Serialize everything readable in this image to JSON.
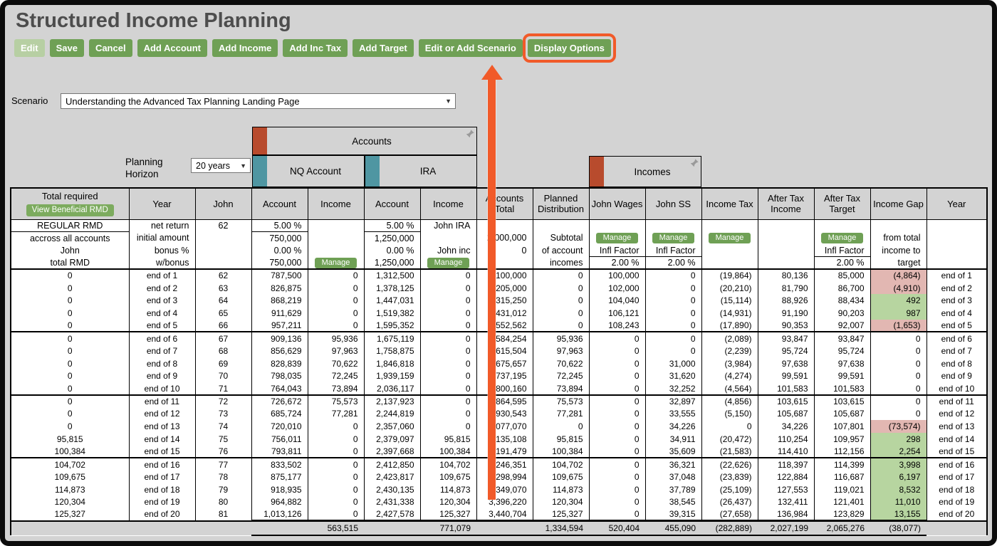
{
  "title": "Structured Income Planning",
  "toolbar": {
    "buttons": [
      {
        "id": "edit",
        "label": "Edit",
        "disabled": true
      },
      {
        "id": "save",
        "label": "Save"
      },
      {
        "id": "cancel",
        "label": "Cancel"
      },
      {
        "id": "add-account",
        "label": "Add Account"
      },
      {
        "id": "add-income",
        "label": "Add Income"
      },
      {
        "id": "add-inc-tax",
        "label": "Add Inc Tax"
      },
      {
        "id": "add-target",
        "label": "Add Target"
      },
      {
        "id": "edit-or-add-scenario",
        "label": "Edit or Add Scenario"
      },
      {
        "id": "display-options",
        "label": "Display Options",
        "highlighted": true
      }
    ]
  },
  "scenario": {
    "label": "Scenario",
    "value": "Understanding the Advanced Tax Planning Landing Page"
  },
  "panels": {
    "accounts_label": "Accounts",
    "nq_label": "NQ Account",
    "ira_label": "IRA",
    "incomes_label": "Incomes",
    "planning_horizon_label": "Planning Horizon",
    "planning_horizon_value": "20 years"
  },
  "colors": {
    "accent_green": "#6fa055",
    "highlight_orange": "#f15a29",
    "cell_orange": "#f2a25d",
    "cell_yellow": "#e9e97a",
    "gap_pink": "#e2b7b2",
    "gap_green": "#b7d5a0",
    "tab_red": "#b84b2d",
    "tab_teal": "#4f96a2"
  },
  "table": {
    "header": {
      "columns": [
        "Total required",
        "Year",
        "John",
        "Account",
        "Income",
        "Account",
        "Income",
        "Accounts Total",
        "Planned Distribution",
        "John Wages",
        "John SS",
        "Income Tax",
        "After Tax Income",
        "After Tax Target",
        "Income Gap",
        "Year"
      ],
      "view_rmd_button": "View Beneficial RMD"
    },
    "sub_rows": [
      [
        {
          "t": "REGULAR RMD",
          "s": "yellow"
        },
        {
          "t": "net return"
        },
        {
          "t": "62"
        },
        {
          "t": "5.00 %",
          "s": "orange"
        },
        {
          "t": ""
        },
        {
          "t": "5.00 %",
          "s": "orange"
        },
        {
          "t": "John IRA"
        },
        {
          "t": ""
        },
        {
          "t": ""
        },
        {
          "t": ""
        },
        {
          "t": ""
        },
        {
          "t": ""
        },
        {
          "t": ""
        },
        {
          "t": ""
        },
        {
          "t": ""
        },
        {
          "t": ""
        }
      ],
      [
        {
          "t": "accross all accounts"
        },
        {
          "t": "initial amount"
        },
        {
          "t": ""
        },
        {
          "t": "750,000"
        },
        {
          "t": ""
        },
        {
          "t": "1,250,000"
        },
        {
          "t": ""
        },
        {
          "t": "2,000,000"
        },
        {
          "t": "Subtotal"
        },
        {
          "t": "Manage",
          "s": "btn"
        },
        {
          "t": "Manage",
          "s": "btn"
        },
        {
          "t": "Manage",
          "s": "btn"
        },
        {
          "t": ""
        },
        {
          "t": "Manage",
          "s": "btn"
        },
        {
          "t": "from total"
        },
        {
          "t": ""
        }
      ],
      [
        {
          "t": "John"
        },
        {
          "t": "bonus %"
        },
        {
          "t": ""
        },
        {
          "t": "0.00 %"
        },
        {
          "t": ""
        },
        {
          "t": "0.00 %"
        },
        {
          "t": "John inc"
        },
        {
          "t": "0"
        },
        {
          "t": "of account"
        },
        {
          "t": "Infl Factor"
        },
        {
          "t": "Infl Factor"
        },
        {
          "t": ""
        },
        {
          "t": ""
        },
        {
          "t": "Infl Factor"
        },
        {
          "t": "income to"
        },
        {
          "t": ""
        }
      ],
      [
        {
          "t": "total RMD"
        },
        {
          "t": "w/bonus"
        },
        {
          "t": ""
        },
        {
          "t": "750,000"
        },
        {
          "t": "Manage",
          "s": "btn"
        },
        {
          "t": "1,250,000"
        },
        {
          "t": "Manage",
          "s": "btn"
        },
        {
          "t": ""
        },
        {
          "t": "incomes"
        },
        {
          "t": "2.00 %",
          "s": "orange"
        },
        {
          "t": "2.00 %",
          "s": "orange"
        },
        {
          "t": ""
        },
        {
          "t": ""
        },
        {
          "t": "2.00 %",
          "s": "orange"
        },
        {
          "t": "target"
        },
        {
          "t": ""
        }
      ]
    ],
    "rows": [
      {
        "c": [
          "0",
          "end of 1",
          "62",
          "787,500",
          "0",
          "1,312,500",
          "0",
          "2,100,000",
          "0",
          "100,000",
          "0",
          "(19,864)",
          "80,136",
          "85,000",
          "(4,864)",
          "end of 1"
        ],
        "g": "p"
      },
      {
        "c": [
          "0",
          "end of 2",
          "63",
          "826,875",
          "0",
          "1,378,125",
          "0",
          "2,205,000",
          "0",
          "102,000",
          "0",
          "(20,210)",
          "81,790",
          "86,700",
          "(4,910)",
          "end of 2"
        ],
        "g": "p"
      },
      {
        "c": [
          "0",
          "end of 3",
          "64",
          "868,219",
          "0",
          "1,447,031",
          "0",
          "2,315,250",
          "0",
          "104,040",
          "0",
          "(15,114)",
          "88,926",
          "88,434",
          "492",
          "end of 3"
        ],
        "g": "g"
      },
      {
        "c": [
          "0",
          "end of 4",
          "65",
          "911,629",
          "0",
          "1,519,382",
          "0",
          "2,431,012",
          "0",
          "106,121",
          "0",
          "(14,931)",
          "91,190",
          "90,203",
          "987",
          "end of 4"
        ],
        "g": "g"
      },
      {
        "c": [
          "0",
          "end of 5",
          "66",
          "957,211",
          "0",
          "1,595,352",
          "0",
          "2,552,562",
          "0",
          "108,243",
          "0",
          "(17,890)",
          "90,353",
          "92,007",
          "(1,653)",
          "end of 5"
        ],
        "g": "p"
      },
      {
        "c": [
          "0",
          "end of 6",
          "67",
          "909,136",
          "95,936",
          "1,675,119",
          "0",
          "2,584,254",
          "95,936",
          "0",
          "0",
          "(2,089)",
          "93,847",
          "93,847",
          "0",
          "end of 6"
        ],
        "g": ""
      },
      {
        "c": [
          "0",
          "end of 7",
          "68",
          "856,629",
          "97,963",
          "1,758,875",
          "0",
          "2,615,504",
          "97,963",
          "0",
          "0",
          "(2,239)",
          "95,724",
          "95,724",
          "0",
          "end of 7"
        ],
        "g": ""
      },
      {
        "c": [
          "0",
          "end of 8",
          "69",
          "828,839",
          "70,622",
          "1,846,818",
          "0",
          "2,675,657",
          "70,622",
          "0",
          "31,000",
          "(3,984)",
          "97,638",
          "97,638",
          "0",
          "end of 8"
        ],
        "g": ""
      },
      {
        "c": [
          "0",
          "end of 9",
          "70",
          "798,035",
          "72,245",
          "1,939,159",
          "0",
          "2,737,195",
          "72,245",
          "0",
          "31,620",
          "(4,274)",
          "99,591",
          "99,591",
          "0",
          "end of 9"
        ],
        "g": ""
      },
      {
        "c": [
          "0",
          "end of 10",
          "71",
          "764,043",
          "73,894",
          "2,036,117",
          "0",
          "2,800,160",
          "73,894",
          "0",
          "32,252",
          "(4,564)",
          "101,583",
          "101,583",
          "0",
          "end of 10"
        ],
        "g": ""
      },
      {
        "c": [
          "0",
          "end of 11",
          "72",
          "726,672",
          "75,573",
          "2,137,923",
          "0",
          "2,864,595",
          "75,573",
          "0",
          "32,897",
          "(4,856)",
          "103,615",
          "103,615",
          "0",
          "end of 11"
        ],
        "g": ""
      },
      {
        "c": [
          "0",
          "end of 12",
          "73",
          "685,724",
          "77,281",
          "2,244,819",
          "0",
          "2,930,543",
          "77,281",
          "0",
          "33,555",
          "(5,150)",
          "105,687",
          "105,687",
          "0",
          "end of 12"
        ],
        "g": ""
      },
      {
        "c": [
          "0",
          "end of 13",
          "74",
          "720,010",
          "0",
          "2,357,060",
          "0",
          "3,077,070",
          "0",
          "0",
          "34,226",
          "0",
          "34,226",
          "107,801",
          "(73,574)",
          "end of 13"
        ],
        "g": "p"
      },
      {
        "c": [
          "95,815",
          "end of 14",
          "75",
          "756,011",
          "0",
          "2,379,097",
          "95,815",
          "3,135,108",
          "95,815",
          "0",
          "34,911",
          "(20,472)",
          "110,254",
          "109,957",
          "298",
          "end of 14"
        ],
        "g": "g"
      },
      {
        "c": [
          "100,384",
          "end of 15",
          "76",
          "793,811",
          "0",
          "2,397,668",
          "100,384",
          "3,191,479",
          "100,384",
          "0",
          "35,609",
          "(21,583)",
          "114,410",
          "112,156",
          "2,254",
          "end of 15"
        ],
        "g": "g"
      },
      {
        "c": [
          "104,702",
          "end of 16",
          "77",
          "833,502",
          "0",
          "2,412,850",
          "104,702",
          "3,246,351",
          "104,702",
          "0",
          "36,321",
          "(22,626)",
          "118,397",
          "114,399",
          "3,998",
          "end of 16"
        ],
        "g": "g"
      },
      {
        "c": [
          "109,675",
          "end of 17",
          "78",
          "875,177",
          "0",
          "2,423,817",
          "109,675",
          "3,298,994",
          "109,675",
          "0",
          "37,048",
          "(23,839)",
          "122,884",
          "116,687",
          "6,197",
          "end of 17"
        ],
        "g": "g"
      },
      {
        "c": [
          "114,873",
          "end of 18",
          "79",
          "918,935",
          "0",
          "2,430,135",
          "114,873",
          "3,349,070",
          "114,873",
          "0",
          "37,789",
          "(25,109)",
          "127,553",
          "119,021",
          "8,532",
          "end of 18"
        ],
        "g": "g"
      },
      {
        "c": [
          "120,304",
          "end of 19",
          "80",
          "964,882",
          "0",
          "2,431,338",
          "120,304",
          "3,396,220",
          "120,304",
          "0",
          "38,545",
          "(26,437)",
          "132,411",
          "121,401",
          "11,010",
          "end of 19"
        ],
        "g": "g"
      },
      {
        "c": [
          "125,327",
          "end of 20",
          "81",
          "1,013,126",
          "0",
          "2,427,578",
          "125,327",
          "3,440,704",
          "125,327",
          "0",
          "39,315",
          "(27,658)",
          "136,984",
          "123,829",
          "13,155",
          "end of 20"
        ],
        "g": "g"
      }
    ],
    "totals": [
      "",
      "",
      "",
      "",
      "563,515",
      "",
      "771,079",
      "",
      "1,334,594",
      "520,404",
      "455,090",
      "(282,889)",
      "2,027,199",
      "2,065,276",
      "(38,077)",
      ""
    ]
  }
}
